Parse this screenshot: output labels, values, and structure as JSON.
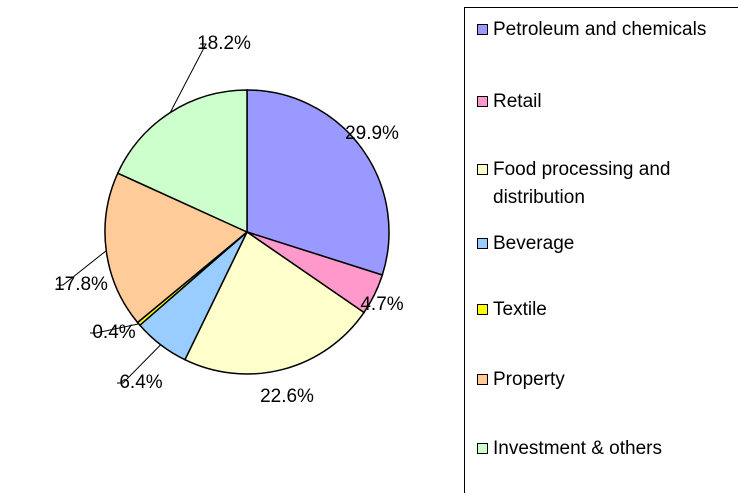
{
  "chart_data": {
    "type": "pie",
    "categories": [
      "Petroleum and chemicals",
      "Retail",
      "Food processing and distribution",
      "Beverage",
      "Textile",
      "Property",
      "Investment & others"
    ],
    "values": [
      29.9,
      4.7,
      22.6,
      6.4,
      0.4,
      17.8,
      18.2
    ],
    "value_labels": [
      "29.9%",
      "4.7%",
      "22.6%",
      "6.4%",
      "0.4%",
      "17.8%",
      "18.2%"
    ],
    "colors": [
      "#9999ff",
      "#ff99cc",
      "#ffffcc",
      "#99ccff",
      "#ffff00",
      "#ffcc99",
      "#ccffcc"
    ],
    "legend": "right"
  }
}
